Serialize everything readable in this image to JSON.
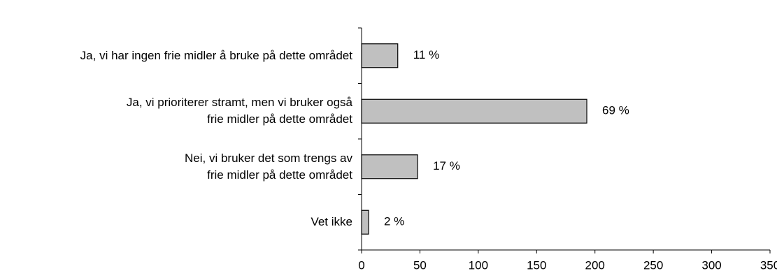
{
  "chart_data": {
    "type": "hbar",
    "categories": [
      "Ja, vi har ingen frie midler å bruke på dette området",
      "Ja, vi prioriterer stramt, men vi bruker også\nfrie midler på dette området",
      "Nei, vi bruker det som trengs av\nfrie midler på dette området",
      "Vet ikke"
    ],
    "values": [
      31,
      193,
      48,
      6
    ],
    "value_labels": [
      "11 %",
      "69 %",
      "17 %",
      "2 %"
    ],
    "color": "#c0c0c0",
    "xlim": [
      0,
      350
    ],
    "xticks": [
      0,
      50,
      100,
      150,
      200,
      250,
      300,
      350
    ]
  }
}
